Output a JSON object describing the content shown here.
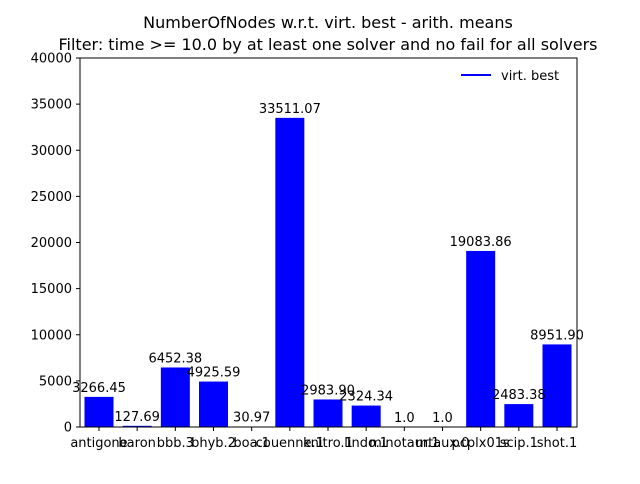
{
  "chart_data": {
    "type": "bar",
    "title": "NumberOfNodes w.r.t. virt. best - arith. means",
    "subtitle": "Filter: time >= 10.0 by at least one solver and no fail for all solvers",
    "xlabel": "",
    "ylabel": "",
    "ylim": [
      0,
      40000
    ],
    "yticks": [
      0,
      5000,
      10000,
      15000,
      20000,
      25000,
      30000,
      35000,
      40000
    ],
    "grid": false,
    "legend_position": "top-right",
    "categories": [
      "antigone",
      "baron",
      "bbb.3",
      "bhyb.2",
      "boa.1",
      "couenne.1",
      "knitro.1",
      "lindo.1",
      "minotaur.1",
      "mtaux.0",
      "pcplx01s",
      "scip.1",
      "shot.1"
    ],
    "series": [
      {
        "name": "virt. best",
        "color": "#0000ff",
        "values": [
          3266.45,
          127.69,
          6452.38,
          4925.59,
          30.97,
          33511.07,
          2983.9,
          2324.34,
          1.0,
          1.0,
          19083.86,
          2483.38,
          8951.9
        ],
        "labels": [
          "3266.45",
          "127.69",
          "6452.38",
          "4925.59",
          "30.97",
          "33511.07",
          "2983.90",
          "2324.34",
          "1.0",
          "1.0",
          "19083.86",
          "2483.38",
          "8951.90"
        ]
      }
    ]
  }
}
